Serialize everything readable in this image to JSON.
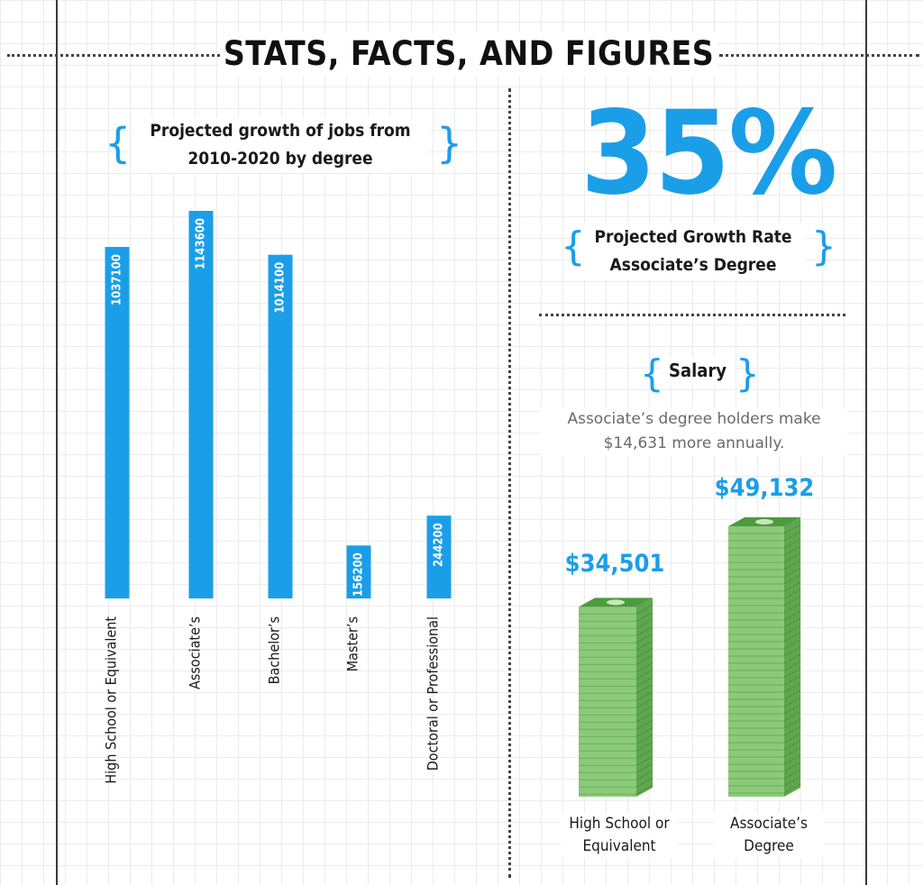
{
  "header": {
    "title": "STATS, FACTS, AND FIGURES"
  },
  "jobs_chart": {
    "title": "Projected growth of jobs from 2010-2020 by degree"
  },
  "growth_stat": {
    "value": "35%",
    "label": "Projected Growth Rate Associate’s Degree"
  },
  "salary": {
    "heading": "Salary",
    "description": "Associate’s degree holders make $14,631 more annually."
  },
  "colors": {
    "accent": "#1b9ee8",
    "money": "#8cc97a",
    "money_dark": "#5fa64e"
  },
  "chart_data": [
    {
      "type": "bar",
      "title": "Projected growth of jobs from 2010-2020 by degree",
      "categories": [
        "High School or Equivalent",
        "Associate’s",
        "Bachelor’s",
        "Master’s",
        "Doctoral or Professional"
      ],
      "values": [
        1037100,
        1143600,
        1014100,
        156200,
        244200
      ],
      "ylim": [
        0,
        1143600
      ],
      "orientation": "vertical",
      "grid": false,
      "data_labels": true
    },
    {
      "type": "bar",
      "title": "Salary",
      "categories": [
        "High School or Equivalent",
        "Associate’s Degree"
      ],
      "values": [
        34501,
        49132
      ],
      "value_labels": [
        "$34,501",
        "$49,132"
      ],
      "style": "stacked-money",
      "ylim": [
        0,
        49132
      ]
    }
  ]
}
